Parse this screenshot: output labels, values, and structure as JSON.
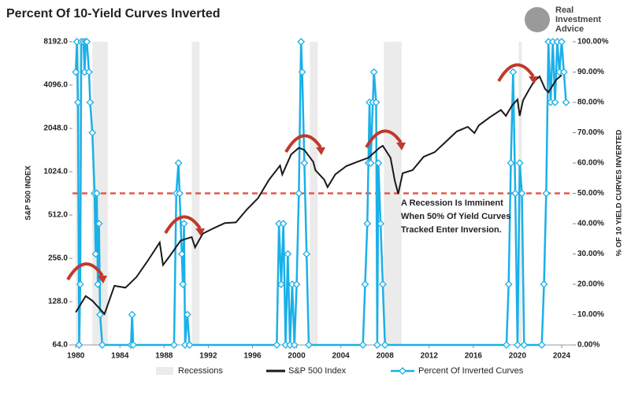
{
  "chart_data": {
    "type": "line",
    "title": "Percent Of 10-Yield Curves Inverted",
    "logo": [
      "Real",
      "Investment",
      "Advice"
    ],
    "ylabel": "S&P 500 INDEX",
    "y2label": "% OF 10 YIELD CURVES INVERTED",
    "annotation": [
      "A Recession Is Imminent",
      "When 50% Of Yield Curves",
      "Tracked Enter Inversion."
    ],
    "xlim": [
      1979.7,
      2025.0
    ],
    "xticks": [
      1980,
      1984,
      1988,
      1992,
      1996,
      2000,
      2004,
      2008,
      2012,
      2016,
      2020,
      2024
    ],
    "ylim": [
      64,
      8192
    ],
    "log_y": true,
    "yticks": [
      {
        "value": 64,
        "label": "64.0"
      },
      {
        "value": 128,
        "label": "128.0"
      },
      {
        "value": 256,
        "label": "256.0"
      },
      {
        "value": 512,
        "label": "512.0"
      },
      {
        "value": 1024,
        "label": "1024.0"
      },
      {
        "value": 2048,
        "label": "2048.0"
      },
      {
        "value": 4096,
        "label": "4096.0"
      },
      {
        "value": 8192,
        "label": "8192.0"
      }
    ],
    "y2lim": [
      0,
      100
    ],
    "y2ticks": [
      {
        "value": 0,
        "label": "0.00%"
      },
      {
        "value": 10,
        "label": "10.00%"
      },
      {
        "value": 20,
        "label": "20.00%"
      },
      {
        "value": 30,
        "label": "30.00%"
      },
      {
        "value": 40,
        "label": "40.00%"
      },
      {
        "value": 50,
        "label": "50.00%"
      },
      {
        "value": 60,
        "label": "60.00%"
      },
      {
        "value": 70,
        "label": "70.00%"
      },
      {
        "value": 80,
        "label": "80.00%"
      },
      {
        "value": 90,
        "label": "90.00%"
      },
      {
        "value": 100,
        "label": "100.00%"
      }
    ],
    "recessions": {
      "name": "Recessions",
      "color": "#ebebeb",
      "periods": [
        [
          1980.0,
          1980.5
        ],
        [
          1981.5,
          1982.9
        ],
        [
          1990.5,
          1991.2
        ],
        [
          2001.2,
          2001.9
        ],
        [
          2007.9,
          2009.5
        ],
        [
          2020.1,
          2020.4
        ]
      ]
    },
    "reference_line": {
      "value": 50,
      "axis": "y2",
      "color": "#e05a4a"
    },
    "series": [
      {
        "name": "S&P 500 Index",
        "color": "#1a1a1a",
        "x": [
          1980.0,
          1980.9,
          1981.5,
          1982.6,
          1983.5,
          1984.5,
          1985.5,
          1986.5,
          1987.6,
          1987.9,
          1988.5,
          1989.5,
          1990.5,
          1990.8,
          1991.5,
          1992.5,
          1993.5,
          1994.5,
          1995.5,
          1996.5,
          1997.5,
          1998.5,
          1998.7,
          1999.5,
          2000.2,
          2000.7,
          2001.5,
          2001.7,
          2002.5,
          2002.8,
          2003.5,
          2004.5,
          2005.5,
          2006.5,
          2007.5,
          2007.8,
          2008.5,
          2008.9,
          2009.2,
          2009.6,
          2010.5,
          2011.5,
          2012.5,
          2013.5,
          2014.5,
          2015.5,
          2016.1,
          2016.5,
          2017.5,
          2018.5,
          2018.95,
          2019.5,
          2020.0,
          2020.2,
          2020.5,
          2021.0,
          2021.5,
          2022.0,
          2022.5,
          2022.8,
          2023.5,
          2024.0
        ],
        "values": [
          108,
          140,
          130,
          105,
          165,
          160,
          190,
          245,
          330,
          230,
          265,
          340,
          360,
          305,
          380,
          415,
          450,
          455,
          560,
          670,
          900,
          1130,
          980,
          1350,
          1500,
          1450,
          1200,
          1050,
          900,
          800,
          980,
          1120,
          1200,
          1280,
          1500,
          1550,
          1280,
          880,
          720,
          1000,
          1050,
          1300,
          1400,
          1650,
          1950,
          2100,
          1900,
          2150,
          2450,
          2750,
          2500,
          2950,
          3250,
          2500,
          3200,
          3750,
          4350,
          4700,
          3850,
          3650,
          4450,
          4800
        ]
      },
      {
        "name": "Percent Of Inverted Curves",
        "color": "#1ab0e8",
        "axis": "y2",
        "x": [
          1980.0,
          1980.1,
          1980.2,
          1980.3,
          1980.4,
          1980.5,
          1980.7,
          1980.8,
          1980.9,
          1981.0,
          1981.2,
          1981.3,
          1981.5,
          1981.7,
          1981.8,
          1981.9,
          1982.0,
          1982.1,
          1982.2,
          1982.4,
          1985.0,
          1985.1,
          1985.2,
          1988.9,
          1989.1,
          1989.3,
          1989.4,
          1989.6,
          1989.7,
          1989.8,
          1989.9,
          1990.1,
          1990.3,
          1998.2,
          1998.4,
          1998.6,
          1998.8,
          1999.0,
          1999.2,
          1999.4,
          1999.6,
          1999.8,
          2000.0,
          2000.2,
          2000.4,
          2000.5,
          2000.7,
          2000.9,
          2001.1,
          2006.0,
          2006.2,
          2006.4,
          2006.5,
          2006.6,
          2006.7,
          2006.9,
          2007.0,
          2007.2,
          2007.3,
          2007.4,
          2007.6,
          2007.8,
          2008.0,
          2019.0,
          2019.2,
          2019.4,
          2019.6,
          2019.8,
          2020.0,
          2020.2,
          2020.4,
          2020.6,
          2022.2,
          2022.4,
          2022.6,
          2022.8,
          2023.0,
          2023.2,
          2023.4,
          2023.6,
          2023.8,
          2024.0,
          2024.2,
          2024.4
        ],
        "values": [
          90,
          100,
          80,
          0,
          20,
          100,
          100,
          90,
          100,
          100,
          90,
          80,
          70,
          50,
          30,
          50,
          20,
          40,
          10,
          0,
          0,
          10,
          0,
          0,
          50,
          60,
          50,
          30,
          20,
          40,
          0,
          10,
          0,
          0,
          40,
          20,
          40,
          0,
          30,
          0,
          20,
          0,
          20,
          50,
          100,
          90,
          60,
          30,
          0,
          0,
          20,
          40,
          60,
          80,
          60,
          80,
          90,
          80,
          0,
          60,
          40,
          20,
          0,
          0,
          20,
          60,
          90,
          50,
          0,
          60,
          50,
          0,
          0,
          20,
          50,
          100,
          80,
          100,
          80,
          100,
          90,
          100,
          90,
          80
        ]
      }
    ]
  }
}
